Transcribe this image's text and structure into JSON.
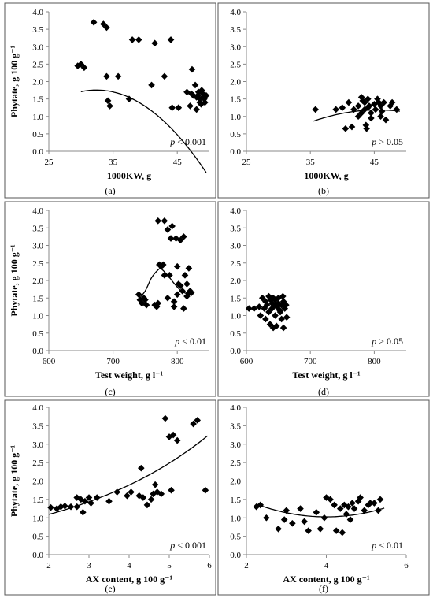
{
  "chart_data": [
    {
      "type": "scatter",
      "id": "a",
      "caption": "(a)",
      "ylabel": "Phytate, g 100 g⁻¹",
      "xlabel": "1000KW, g",
      "xlim": [
        25,
        50
      ],
      "ylim": [
        0,
        4
      ],
      "xticks": [
        "25",
        "35",
        "45"
      ],
      "xtick_values": [
        25,
        35,
        45
      ],
      "yticks": [
        "0.0",
        "0.5",
        "1.0",
        "1.5",
        "2.0",
        "2.5",
        "3.0",
        "3.5",
        "4.0"
      ],
      "ytick_values": [
        0,
        0.5,
        1,
        1.5,
        2,
        2.5,
        3,
        3.5,
        4
      ],
      "pvalue": {
        "p": "p",
        "rest": " < 0.001"
      },
      "trendline": {
        "type": "poly2",
        "coef": [
          -6.75,
          0.525,
          -0.0081
        ],
        "x_range": [
          30,
          49.5
        ]
      },
      "points": [
        [
          29.5,
          2.45
        ],
        [
          30,
          2.5
        ],
        [
          30.5,
          2.4
        ],
        [
          32,
          3.7
        ],
        [
          33.5,
          3.65
        ],
        [
          34,
          3.55
        ],
        [
          34,
          2.15
        ],
        [
          34.2,
          1.45
        ],
        [
          34.5,
          1.3
        ],
        [
          35.8,
          2.15
        ],
        [
          37.5,
          1.5
        ],
        [
          38,
          3.2
        ],
        [
          39,
          3.2
        ],
        [
          41,
          1.9
        ],
        [
          41.5,
          3.1
        ],
        [
          43,
          2.15
        ],
        [
          44,
          3.2
        ],
        [
          44.2,
          1.25
        ],
        [
          45.2,
          1.25
        ],
        [
          46.5,
          1.7
        ],
        [
          47,
          1.3
        ],
        [
          47.2,
          1.65
        ],
        [
          47.3,
          2.35
        ],
        [
          47.5,
          1.6
        ],
        [
          47.8,
          1.9
        ],
        [
          48,
          1.55
        ],
        [
          48,
          1.2
        ],
        [
          48.2,
          1.6
        ],
        [
          48.3,
          1.7
        ],
        [
          48.5,
          1.5
        ],
        [
          48.5,
          1.4
        ],
        [
          48.7,
          1.35
        ],
        [
          48.8,
          1.75
        ],
        [
          49,
          1.65
        ],
        [
          49,
          1.55
        ],
        [
          49.2,
          1.5
        ],
        [
          49.3,
          1.4
        ],
        [
          49.5,
          1.6
        ]
      ]
    },
    {
      "type": "scatter",
      "id": "b",
      "caption": "(b)",
      "ylabel": "",
      "xlabel": "1000KW, g",
      "xlim": [
        25,
        50
      ],
      "ylim": [
        0,
        4
      ],
      "xticks": [
        "25",
        "35",
        "45"
      ],
      "xtick_values": [
        25,
        35,
        45
      ],
      "yticks": [
        "0.0",
        "0.5",
        "1.0",
        "1.5",
        "2.0",
        "2.5",
        "3.0",
        "3.5",
        "4.0"
      ],
      "ytick_values": [
        0,
        0.5,
        1,
        1.5,
        2,
        2.5,
        3,
        3.5,
        4
      ],
      "pvalue": {
        "p": "p",
        "rest": " > 0.05"
      },
      "trendline": {
        "type": "poly2",
        "coef": [
          -5.4,
          0.289,
          -0.00317
        ],
        "x_range": [
          35.5,
          49
        ]
      },
      "points": [
        [
          35.8,
          1.2
        ],
        [
          39,
          1.2
        ],
        [
          40,
          1.25
        ],
        [
          40.5,
          0.65
        ],
        [
          41,
          1.4
        ],
        [
          41.5,
          0.7
        ],
        [
          41.8,
          1.2
        ],
        [
          42.5,
          1.3
        ],
        [
          42.5,
          1.0
        ],
        [
          43,
          1.55
        ],
        [
          43,
          1.1
        ],
        [
          43.2,
          1.45
        ],
        [
          43.5,
          1.4
        ],
        [
          43.5,
          1.2
        ],
        [
          43.7,
          0.75
        ],
        [
          43.8,
          0.65
        ],
        [
          44,
          1.5
        ],
        [
          44,
          1.25
        ],
        [
          44.2,
          1.3
        ],
        [
          44.5,
          1.1
        ],
        [
          44.5,
          0.95
        ],
        [
          45,
          1.35
        ],
        [
          45.2,
          1.2
        ],
        [
          45.5,
          1.5
        ],
        [
          45.7,
          1.4
        ],
        [
          46,
          1.0
        ],
        [
          46,
          1.3
        ],
        [
          46.2,
          1.15
        ],
        [
          46.5,
          1.4
        ],
        [
          46.8,
          0.9
        ],
        [
          47.5,
          1.3
        ],
        [
          47.8,
          1.4
        ],
        [
          48.5,
          1.2
        ]
      ]
    },
    {
      "type": "scatter",
      "id": "c",
      "caption": "(c)",
      "ylabel": "Phytate, g 100 g⁻¹",
      "xlabel": "Test weight, g l⁻¹",
      "xlim": [
        600,
        850
      ],
      "ylim": [
        0,
        4
      ],
      "xticks": [
        "600",
        "700",
        "800"
      ],
      "xtick_values": [
        600,
        700,
        800
      ],
      "yticks": [
        "0.0",
        "0.5",
        "1.0",
        "1.5",
        "2.0",
        "2.5",
        "3.0",
        "3.5",
        "4.0"
      ],
      "ytick_values": [
        0,
        0.5,
        1,
        1.5,
        2,
        2.5,
        3,
        3.5,
        4
      ],
      "pvalue": {
        "p": "p",
        "rest": " < 0.01"
      },
      "trendline": {
        "type": "spline",
        "x_range": [
          738,
          823
        ],
        "knots": [
          [
            738,
            1.42
          ],
          [
            750,
            1.7
          ],
          [
            760,
            2.08
          ],
          [
            770,
            2.3
          ],
          [
            775,
            2.33
          ],
          [
            785,
            2.15
          ],
          [
            795,
            1.92
          ],
          [
            805,
            1.72
          ],
          [
            815,
            1.62
          ],
          [
            823,
            1.6
          ]
        ]
      },
      "points": [
        [
          740,
          1.6
        ],
        [
          742,
          1.45
        ],
        [
          745,
          1.35
        ],
        [
          748,
          1.5
        ],
        [
          750,
          1.45
        ],
        [
          752,
          1.3
        ],
        [
          765,
          1.3
        ],
        [
          768,
          1.25
        ],
        [
          770,
          1.35
        ],
        [
          770,
          3.7
        ],
        [
          772,
          2.45
        ],
        [
          775,
          2.4
        ],
        [
          778,
          2.45
        ],
        [
          780,
          3.7
        ],
        [
          780,
          2.15
        ],
        [
          785,
          1.5
        ],
        [
          785,
          3.45
        ],
        [
          788,
          2.15
        ],
        [
          790,
          3.2
        ],
        [
          792,
          3.55
        ],
        [
          795,
          1.4
        ],
        [
          795,
          1.25
        ],
        [
          798,
          3.2
        ],
        [
          800,
          2.4
        ],
        [
          800,
          1.6
        ],
        [
          802,
          1.9
        ],
        [
          805,
          3.15
        ],
        [
          805,
          1.85
        ],
        [
          808,
          1.7
        ],
        [
          810,
          3.25
        ],
        [
          810,
          1.2
        ],
        [
          812,
          2.15
        ],
        [
          815,
          1.55
        ],
        [
          815,
          1.9
        ],
        [
          818,
          2.35
        ],
        [
          818,
          1.65
        ],
        [
          820,
          1.7
        ],
        [
          822,
          1.65
        ]
      ]
    },
    {
      "type": "scatter",
      "id": "d",
      "caption": "(d)",
      "ylabel": "",
      "xlabel": "Test weight, g l⁻¹",
      "xlim": [
        600,
        850
      ],
      "ylim": [
        0,
        4
      ],
      "xticks": [
        "600",
        "700",
        "800"
      ],
      "xtick_values": [
        600,
        700,
        800
      ],
      "yticks": [
        "0.0",
        "0.5",
        "1.0",
        "1.5",
        "2.0",
        "2.5",
        "3.0",
        "3.5",
        "4.0"
      ],
      "ytick_values": [
        0,
        0.5,
        1,
        1.5,
        2,
        2.5,
        3,
        3.5,
        4
      ],
      "pvalue": {
        "p": "p",
        "rest": " > 0.05"
      },
      "trendline": null,
      "points": [
        [
          604,
          1.2
        ],
        [
          612,
          1.2
        ],
        [
          620,
          1.25
        ],
        [
          622,
          1.0
        ],
        [
          625,
          1.5
        ],
        [
          628,
          1.2
        ],
        [
          630,
          1.4
        ],
        [
          630,
          0.9
        ],
        [
          632,
          1.3
        ],
        [
          635,
          1.55
        ],
        [
          635,
          1.1
        ],
        [
          637,
          0.75
        ],
        [
          638,
          1.45
        ],
        [
          640,
          1.35
        ],
        [
          640,
          1.2
        ],
        [
          642,
          0.65
        ],
        [
          642,
          1.5
        ],
        [
          644,
          1.3
        ],
        [
          645,
          1.0
        ],
        [
          645,
          1.45
        ],
        [
          647,
          0.7
        ],
        [
          648,
          1.25
        ],
        [
          650,
          1.35
        ],
        [
          650,
          1.5
        ],
        [
          652,
          1.15
        ],
        [
          653,
          1.1
        ],
        [
          655,
          1.3
        ],
        [
          655,
          0.9
        ],
        [
          657,
          1.55
        ],
        [
          658,
          1.4
        ],
        [
          658,
          0.65
        ],
        [
          660,
          1.2
        ],
        [
          662,
          1.3
        ],
        [
          663,
          0.95
        ]
      ]
    },
    {
      "type": "scatter",
      "id": "e",
      "caption": "(e)",
      "ylabel": "Phytate, g 100 g⁻¹",
      "xlabel": "AX content, g 100 g⁻¹",
      "xlim": [
        2,
        6
      ],
      "ylim": [
        0,
        4
      ],
      "xticks": [
        "2",
        "3",
        "4",
        "5",
        "6"
      ],
      "xtick_values": [
        2,
        3,
        4,
        5,
        6
      ],
      "yticks": [
        "0.0",
        "0.5",
        "1.0",
        "1.5",
        "2.0",
        "2.5",
        "3.0",
        "3.5",
        "4.0"
      ],
      "ytick_values": [
        0,
        0.5,
        1,
        1.5,
        2,
        2.5,
        3,
        3.5,
        4
      ],
      "pvalue": {
        "p": "p",
        "rest": " < 0.001"
      },
      "trendline": {
        "type": "exp",
        "a": 0.6317,
        "b": 0.2739,
        "x_range": [
          2,
          5.95
        ]
      },
      "points": [
        [
          2.05,
          1.28
        ],
        [
          2.2,
          1.25
        ],
        [
          2.3,
          1.3
        ],
        [
          2.4,
          1.32
        ],
        [
          2.55,
          1.3
        ],
        [
          2.7,
          1.3
        ],
        [
          2.7,
          1.55
        ],
        [
          2.8,
          1.5
        ],
        [
          2.85,
          1.15
        ],
        [
          2.9,
          1.45
        ],
        [
          3.0,
          1.55
        ],
        [
          3.05,
          1.4
        ],
        [
          3.2,
          1.55
        ],
        [
          3.5,
          1.45
        ],
        [
          3.7,
          1.7
        ],
        [
          3.95,
          1.6
        ],
        [
          4.05,
          1.7
        ],
        [
          4.25,
          1.6
        ],
        [
          4.3,
          2.35
        ],
        [
          4.35,
          1.55
        ],
        [
          4.45,
          1.35
        ],
        [
          4.55,
          1.5
        ],
        [
          4.6,
          1.65
        ],
        [
          4.65,
          1.9
        ],
        [
          4.7,
          1.7
        ],
        [
          4.8,
          1.65
        ],
        [
          4.9,
          3.7
        ],
        [
          5.0,
          3.2
        ],
        [
          5.05,
          1.75
        ],
        [
          5.1,
          3.25
        ],
        [
          5.2,
          3.1
        ],
        [
          5.6,
          3.55
        ],
        [
          5.7,
          3.65
        ],
        [
          5.9,
          1.75
        ]
      ]
    },
    {
      "type": "scatter",
      "id": "f",
      "caption": "(f)",
      "ylabel": "",
      "xlabel": "AX content, g 100 g⁻¹",
      "xlim": [
        2,
        6
      ],
      "ylim": [
        0,
        4
      ],
      "xticks": [
        "2",
        "4",
        "6"
      ],
      "xtick_values": [
        2,
        4,
        6
      ],
      "yticks": [
        "0.0",
        "0.5",
        "1.0",
        "1.5",
        "2.0",
        "2.5",
        "3.0",
        "3.5",
        "4.0"
      ],
      "ytick_values": [
        0,
        0.5,
        1,
        1.5,
        2,
        2.5,
        3,
        3.5,
        4
      ],
      "pvalue": {
        "p": "p",
        "rest": " < 0.01"
      },
      "trendline": {
        "type": "poly2",
        "coef": [
          2.83,
          -0.903,
          0.113
        ],
        "x_range": [
          2.25,
          5.45
        ]
      },
      "points": [
        [
          2.25,
          1.3
        ],
        [
          2.35,
          1.35
        ],
        [
          2.5,
          1.0
        ],
        [
          2.8,
          0.7
        ],
        [
          2.95,
          0.95
        ],
        [
          3.0,
          1.2
        ],
        [
          3.15,
          0.85
        ],
        [
          3.35,
          1.25
        ],
        [
          3.45,
          0.9
        ],
        [
          3.55,
          0.65
        ],
        [
          3.75,
          1.15
        ],
        [
          3.85,
          0.7
        ],
        [
          3.95,
          1.0
        ],
        [
          4.0,
          1.55
        ],
        [
          4.1,
          1.5
        ],
        [
          4.2,
          1.35
        ],
        [
          4.25,
          0.65
        ],
        [
          4.35,
          1.25
        ],
        [
          4.4,
          0.6
        ],
        [
          4.45,
          1.35
        ],
        [
          4.5,
          1.1
        ],
        [
          4.55,
          1.3
        ],
        [
          4.6,
          0.95
        ],
        [
          4.65,
          1.4
        ],
        [
          4.7,
          1.25
        ],
        [
          4.8,
          1.45
        ],
        [
          4.85,
          1.55
        ],
        [
          4.95,
          1.2
        ],
        [
          5.05,
          1.35
        ],
        [
          5.1,
          1.4
        ],
        [
          5.2,
          1.4
        ],
        [
          5.3,
          1.2
        ],
        [
          5.35,
          1.5
        ]
      ]
    }
  ]
}
